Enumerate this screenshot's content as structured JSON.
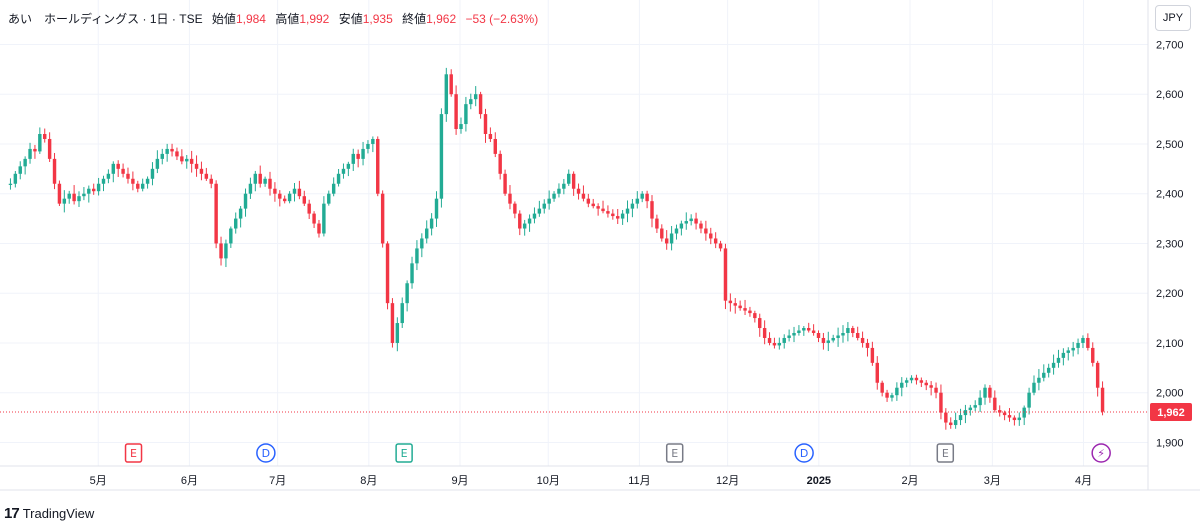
{
  "legend": {
    "symbol": "あい　ホールディングス",
    "interval": "1日",
    "exchange": "TSE",
    "open_label": "始値",
    "open": "1,984",
    "high_label": "高値",
    "high": "1,992",
    "low_label": "安値",
    "low": "1,935",
    "close_label": "終値",
    "close": "1,962",
    "change": "−53 (−2.63%)"
  },
  "currency_button": "JPY",
  "last_price_label": "1,962",
  "branding": {
    "logo": "17",
    "name": "TradingView"
  },
  "colors": {
    "up": "#22ab94",
    "down": "#f23645",
    "grid": "#f0f3fa",
    "event_earnings": "#f23645",
    "event_dividend": "#2962ff",
    "event_split": "#787b86",
    "event_flash": "#9c27b0"
  },
  "events": [
    {
      "label": "E",
      "icon": "earnings-down-icon",
      "date": "2024-05-13"
    },
    {
      "label": "D",
      "icon": "dividend-icon",
      "date": "2024-06-27"
    },
    {
      "label": "E",
      "icon": "earnings-up-icon",
      "date": "2024-08-13"
    },
    {
      "label": "E",
      "icon": "earnings-icon",
      "date": "2024-11-13"
    },
    {
      "label": "D",
      "icon": "dividend-icon",
      "date": "2024-12-27"
    },
    {
      "label": "E",
      "icon": "earnings-icon",
      "date": "2025-02-13"
    },
    {
      "label": "⚡",
      "icon": "lightning-icon",
      "date": "2025-04-07"
    }
  ],
  "chart_data": {
    "type": "candlestick",
    "title": "",
    "xlabel": "",
    "ylabel": "",
    "currency": "JPY",
    "ylim": [
      1850,
      2750
    ],
    "y_ticks": [
      "1,900",
      "2,000",
      "2,100",
      "2,200",
      "2,300",
      "2,400",
      "2,500",
      "2,600",
      "2,700"
    ],
    "x_ticks": [
      {
        "label": "5月",
        "date": "2024-05-01"
      },
      {
        "label": "6月",
        "date": "2024-06-01"
      },
      {
        "label": "7月",
        "date": "2024-07-01"
      },
      {
        "label": "8月",
        "date": "2024-08-01"
      },
      {
        "label": "9月",
        "date": "2024-09-01"
      },
      {
        "label": "10月",
        "date": "2024-10-01"
      },
      {
        "label": "11月",
        "date": "2024-11-01"
      },
      {
        "label": "12月",
        "date": "2024-12-01"
      },
      {
        "label": "2025",
        "date": "2025-01-01"
      },
      {
        "label": "2月",
        "date": "2025-02-01"
      },
      {
        "label": "3月",
        "date": "2025-03-01"
      },
      {
        "label": "4月",
        "date": "2025-04-01"
      }
    ],
    "last_close": 1962,
    "grid": true,
    "note": "Daily OHLC closes approximated from chart, one point per trading day (first date 2024-04-05).",
    "closes": [
      2420,
      2440,
      2455,
      2470,
      2490,
      2485,
      2520,
      2510,
      2470,
      2420,
      2380,
      2390,
      2400,
      2385,
      2395,
      2400,
      2410,
      2405,
      2420,
      2430,
      2440,
      2460,
      2450,
      2440,
      2430,
      2420,
      2410,
      2420,
      2430,
      2450,
      2470,
      2480,
      2490,
      2485,
      2475,
      2465,
      2470,
      2460,
      2450,
      2440,
      2430,
      2420,
      2300,
      2270,
      2300,
      2330,
      2350,
      2370,
      2400,
      2420,
      2440,
      2420,
      2430,
      2410,
      2400,
      2390,
      2385,
      2400,
      2410,
      2395,
      2380,
      2360,
      2340,
      2320,
      2380,
      2400,
      2420,
      2440,
      2450,
      2460,
      2480,
      2470,
      2490,
      2500,
      2510,
      2400,
      2300,
      2180,
      2100,
      2140,
      2180,
      2220,
      2260,
      2290,
      2310,
      2330,
      2350,
      2390,
      2560,
      2640,
      2600,
      2530,
      2540,
      2580,
      2590,
      2600,
      2560,
      2520,
      2510,
      2480,
      2440,
      2400,
      2380,
      2360,
      2330,
      2340,
      2350,
      2360,
      2370,
      2380,
      2390,
      2400,
      2410,
      2420,
      2440,
      2410,
      2400,
      2390,
      2380,
      2375,
      2370,
      2365,
      2360,
      2355,
      2350,
      2360,
      2370,
      2380,
      2390,
      2400,
      2385,
      2350,
      2330,
      2310,
      2300,
      2320,
      2330,
      2340,
      2345,
      2350,
      2340,
      2330,
      2320,
      2310,
      2300,
      2290,
      2185,
      2180,
      2175,
      2170,
      2165,
      2160,
      2150,
      2130,
      2110,
      2100,
      2095,
      2100,
      2110,
      2115,
      2120,
      2125,
      2130,
      2125,
      2120,
      2110,
      2100,
      2105,
      2110,
      2115,
      2120,
      2130,
      2120,
      2110,
      2100,
      2090,
      2060,
      2020,
      2000,
      1990,
      1995,
      2010,
      2020,
      2025,
      2030,
      2025,
      2020,
      2015,
      2010,
      2000,
      1960,
      1940,
      1935,
      1945,
      1955,
      1965,
      1970,
      1975,
      1990,
      2010,
      1990,
      1965,
      1960,
      1955,
      1950,
      1945,
      1950,
      1970,
      2000,
      2020,
      2030,
      2040,
      2050,
      2060,
      2070,
      2080,
      2085,
      2090,
      2100,
      2110,
      2090,
      2060,
      2010,
      1962
    ]
  }
}
